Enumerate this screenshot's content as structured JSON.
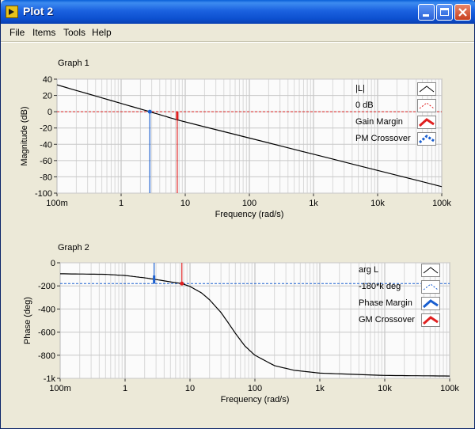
{
  "window": {
    "title": "Plot 2",
    "controls": [
      "minimize-icon",
      "maximize-icon",
      "close-icon"
    ]
  },
  "menu": [
    "File",
    "Items",
    "Tools",
    "Help"
  ],
  "graph1": {
    "label": "Graph 1",
    "legend": [
      "|L|",
      "0 dB",
      "Gain Margin",
      "PM Crossover"
    ],
    "legend_colors": [
      "#000000",
      "#e02020",
      "#e02020",
      "#1a5fd0"
    ]
  },
  "graph2": {
    "label": "Graph 2",
    "legend": [
      "arg L",
      "-180*k deg",
      "Phase Margin",
      "GM Crossover"
    ],
    "legend_colors": [
      "#000000",
      "#1a5fd0",
      "#1a5fd0",
      "#e02020"
    ]
  },
  "chart_data": [
    {
      "type": "line",
      "title": "Graph 1",
      "xlabel": "Frequency (rad/s)",
      "ylabel": "Magnitude (dB)",
      "xscale": "log",
      "xlim": [
        0.1,
        100000
      ],
      "ylim": [
        -100,
        40
      ],
      "xticks": [
        0.1,
        1,
        10,
        100,
        1000,
        10000,
        100000
      ],
      "xticklabels": [
        "100m",
        "1",
        "10",
        "100",
        "1k",
        "10k",
        "100k"
      ],
      "yticks": [
        40,
        20,
        0,
        -20,
        -40,
        -60,
        -80,
        -100
      ],
      "grid": true,
      "legend_placement": "top-right",
      "series": [
        {
          "name": "|L|",
          "x": [
            0.1,
            2.8,
            7.5,
            100000
          ],
          "y": [
            33,
            0,
            -10,
            -92
          ]
        },
        {
          "name": "0 dB",
          "x": [
            0.1,
            100000
          ],
          "y": [
            0,
            0
          ]
        },
        {
          "name": "Gain Margin",
          "x": [
            7.5,
            7.5
          ],
          "y": [
            -100,
            0
          ]
        },
        {
          "name": "PM Crossover",
          "x": [
            2.8,
            2.8
          ],
          "y": [
            -100,
            0
          ]
        }
      ]
    },
    {
      "type": "line",
      "title": "Graph 2",
      "xlabel": "Frequency (rad/s)",
      "ylabel": "Phase (deg)",
      "xscale": "log",
      "xlim": [
        0.1,
        100000
      ],
      "ylim": [
        -1000,
        0
      ],
      "xticks": [
        0.1,
        1,
        10,
        100,
        1000,
        10000,
        100000
      ],
      "xticklabels": [
        "100m",
        "1",
        "10",
        "100",
        "1k",
        "10k",
        "100k"
      ],
      "yticks": [
        0,
        -200,
        -400,
        -600,
        -800,
        -1000
      ],
      "yticklabels": [
        "0",
        "-200",
        "-400",
        "-600",
        "-800",
        "-1k"
      ],
      "grid": true,
      "legend_placement": "top-right",
      "series": [
        {
          "name": "arg L",
          "x": [
            0.1,
            0.5,
            1,
            2,
            3,
            5,
            7.5,
            10,
            15,
            20,
            30,
            40,
            50,
            70,
            100,
            200,
            400,
            1000,
            10000,
            100000
          ],
          "y": [
            -95,
            -100,
            -110,
            -130,
            -145,
            -165,
            -180,
            -205,
            -260,
            -320,
            -430,
            -530,
            -610,
            -720,
            -800,
            -890,
            -930,
            -955,
            -975,
            -980
          ]
        },
        {
          "name": "-180*k deg",
          "x": [
            0.1,
            100000
          ],
          "y": [
            -180,
            -180
          ]
        },
        {
          "name": "Phase Margin",
          "x": [
            2.8,
            2.8
          ],
          "y": [
            0,
            -180
          ]
        },
        {
          "name": "GM Crossover",
          "x": [
            7.5,
            7.5
          ],
          "y": [
            0,
            -180
          ]
        }
      ]
    }
  ]
}
